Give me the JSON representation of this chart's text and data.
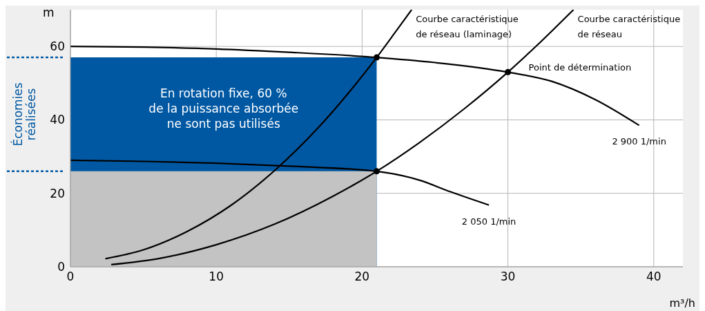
{
  "chart_data": {
    "type": "line",
    "ylabel": "m",
    "xlabel": "m³/h",
    "xlim": [
      0,
      42
    ],
    "ylim": [
      0,
      70
    ],
    "xticks": [
      0,
      10,
      20,
      30,
      40
    ],
    "yticks": [
      0,
      20,
      40,
      60
    ],
    "grid": true,
    "series": [
      {
        "type": "area",
        "color": "#0058a3",
        "x": [
          0,
          21
        ],
        "values": [
          57,
          57
        ]
      },
      {
        "type": "area",
        "color": "#c3c3c3",
        "x": [
          0,
          21
        ],
        "values": [
          26,
          26
        ]
      },
      {
        "name": "2 900 1/min",
        "color": "#000000",
        "x": [
          0,
          5,
          10,
          15,
          21,
          25,
          30,
          33,
          36,
          39
        ],
        "values": [
          60,
          59.8,
          59.3,
          58.4,
          57,
          55.6,
          53,
          50.5,
          45.5,
          38.5
        ]
      },
      {
        "name": "2 050 1/min",
        "color": "#000000",
        "x": [
          0,
          5,
          10,
          15,
          21,
          24,
          26,
          28.7
        ],
        "values": [
          29,
          28.7,
          28.2,
          27.4,
          26,
          23.5,
          20.5,
          16.8
        ]
      },
      {
        "name": "Courbe caractéristique de réseau (laminage)",
        "color": "#000000",
        "x": [
          2.4,
          5,
          8,
          11,
          14,
          17,
          19,
          21,
          22.3,
          23.4
        ],
        "values": [
          2.2,
          4.6,
          9.6,
          16.7,
          26.2,
          37.9,
          47,
          57,
          64,
          70
        ]
      },
      {
        "name": "Courbe caractéristique de réseau",
        "color": "#000000",
        "x": [
          2.8,
          6,
          10,
          14,
          18,
          21,
          24,
          27,
          30,
          32,
          34.5
        ],
        "values": [
          0.6,
          2.2,
          6,
          11.6,
          19.2,
          26,
          34,
          43,
          53,
          60.3,
          70
        ]
      },
      {
        "type": "scatter",
        "color": "#000000",
        "marker": "circle",
        "x": [
          21,
          30,
          21
        ],
        "values": [
          57,
          53,
          26
        ]
      }
    ],
    "annotations": [
      "En rotation fixe, 60 %\nde la puissance absorbée\nne sont pas utilisés",
      {
        "text": "Point de détermination",
        "x": 30,
        "y": 53
      },
      "Économies réalisées"
    ]
  }
}
